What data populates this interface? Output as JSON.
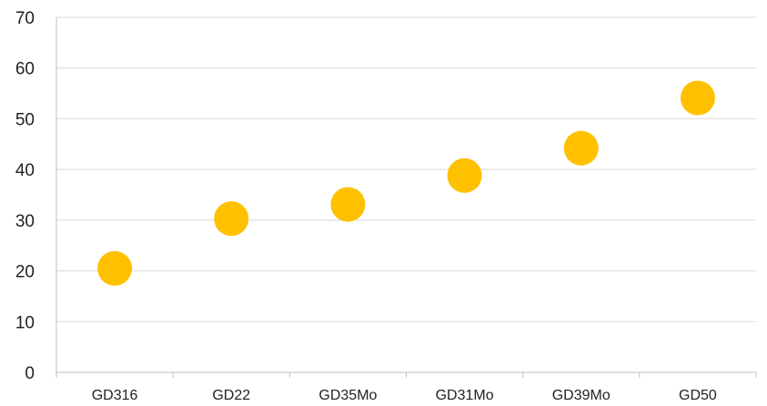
{
  "chart_data": {
    "type": "scatter",
    "title": "",
    "xlabel": "",
    "ylabel": "",
    "categories": [
      "GD316",
      "GD22",
      "GD35Mo",
      "GD31Mo",
      "GD39Mo",
      "GD50"
    ],
    "series": [
      {
        "values": [
          20.5,
          30.3,
          33.1,
          38.8,
          44.2,
          54.1
        ]
      }
    ],
    "ylim": [
      0,
      70
    ],
    "yticks": [
      "0",
      "10",
      "20",
      "30",
      "40",
      "50",
      "60",
      "70"
    ],
    "grid": true,
    "legend": "none",
    "colors": {
      "marker": "#FFC000",
      "gridline": "#D9D9D9",
      "axis": "#BFBFBF",
      "text": "#222222"
    }
  }
}
